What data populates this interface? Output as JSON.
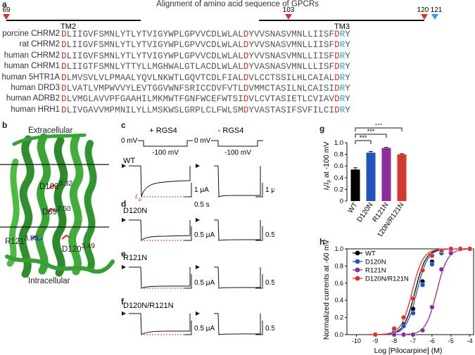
{
  "figure_title": "Alignment of amino acid sequence of GPCRs",
  "panels": {
    "a": "a",
    "b": "b",
    "c": "c",
    "d": "d",
    "e": "e",
    "f": "f",
    "g": "g",
    "h": "h"
  },
  "alignment": {
    "markers": [
      "69",
      "103",
      "120",
      "121"
    ],
    "tm_labels": [
      "TM2",
      "TM3"
    ],
    "rows": [
      {
        "name": "porcine CHRM2",
        "seq": "DLIIGVFSMNLYTLYTVIGYWPLGPVVCDLWLALDYVVSNASVMNLLIISFDRY"
      },
      {
        "name": "rat CHRM2",
        "seq": "DLIIGVFSMNLYTLYTVIGYWPLGPVVCDLWLALDYVVSNASVMNLLIISFDRY"
      },
      {
        "name": "human CHRM2",
        "seq": "DLIIGVFSMNLYTLYTVIGYWPLGPVVCDLWLALDYVVSNASVMNLLIISFDRY"
      },
      {
        "name": "human CHRM1",
        "seq": "DLIIGTFSMNLYTTYLLMGHWALGTLACDLWLALDYVASNASVMNLLLISFDRY"
      },
      {
        "name": "human 5HTR1A",
        "seq": "DLMVSVLVLPMAALYQVLNKWTLGQVTCDLFIALDVLCCTSSILHLCAIALDRY"
      },
      {
        "name": "human DRD3",
        "seq": "DLVATLVMPWVVYLEVTGGVWNFSRICCDVFVTLDVMMCTASILNLCAISIDRY"
      },
      {
        "name": "human ADRB2",
        "seq": "DLVMGLAVVPFGAAHILMKMWTFGNFWCEFWTSIDVLCVTASIETLCVIAVDRY"
      },
      {
        "name": "human HRH1",
        "seq": "DLIVGAVVMPMNILYLLMSKWSLGRPLCLFWLSMDYVASTASIFSVFILCIDRY"
      }
    ]
  },
  "structure": {
    "extracellular": "Extracellular",
    "intracellular": "Intracellular",
    "residues": [
      {
        "label": "D103",
        "sup": "3.32"
      },
      {
        "label": "D69",
        "sup": "2.50"
      },
      {
        "label": "R121",
        "sup": "3.50"
      },
      {
        "label": "D120",
        "sup": "3.49"
      }
    ]
  },
  "traces": {
    "conditions": [
      "+ RGS4",
      "- RGS4"
    ],
    "voltage_labels": [
      "0 mV",
      "-100 mV",
      "0 mV",
      "-100 mV"
    ],
    "constructs": [
      "WT",
      "D120N",
      "R121N",
      "D120N/R121N"
    ],
    "ip_label": "I",
    "ip_sub": "p",
    "scale_time": "0.5 s",
    "scale_wt": "1 μA",
    "scale_mut": "0.5 μA"
  },
  "bar_chart": {
    "type": "bar",
    "ylabel_main": "I",
    "ylabel_sub1": "t",
    "ylabel_slash": "/",
    "ylabel_sub2": "p",
    "ylabel_rest": " at -100 mV",
    "categories": [
      "WT",
      "D120N",
      "R121N",
      "D120N/R121N"
    ],
    "values": [
      0.54,
      0.83,
      0.91,
      0.8
    ],
    "errors": [
      0.03,
      0.02,
      0.01,
      0.01
    ],
    "colors": [
      "#000000",
      "#2255bb",
      "#8a2f9a",
      "#d23a30"
    ],
    "ylim": [
      0,
      1.0
    ],
    "yticks": [
      "0",
      "0.2",
      "0.4",
      "0.6",
      "0.8",
      "1.0"
    ],
    "significance": [
      "***",
      "***",
      "***"
    ]
  },
  "dose_response": {
    "type": "line",
    "xlabel": "Log [Pilocarpine] (M)",
    "ylabel": "Normalized currents at -60 mV",
    "xticks": [
      "-10",
      "-9",
      "-8",
      "-7",
      "-6",
      "-5",
      "-4"
    ],
    "yticks": [
      "0.0",
      "0.2",
      "0.4",
      "0.6",
      "0.8",
      "1.0"
    ],
    "xlim": [
      -10.5,
      -3.8
    ],
    "ylim": [
      0,
      1.0
    ],
    "x": [
      -9,
      -8,
      -7.5,
      -7,
      -6.5,
      -6,
      -5.5,
      -5,
      -4.5,
      -4
    ],
    "series": [
      {
        "name": "WT",
        "color": "#000000",
        "ec50": -6.9,
        "values": [
          0.0,
          0.04,
          0.12,
          0.3,
          0.62,
          0.85,
          0.95,
          0.99,
          1.0,
          1.0
        ]
      },
      {
        "name": "D120N",
        "color": "#2255bb",
        "ec50": -6.8,
        "values": [
          0.0,
          0.03,
          0.1,
          0.25,
          0.58,
          0.82,
          0.95,
          0.98,
          1.0,
          1.0
        ]
      },
      {
        "name": "R121N",
        "color": "#8a2f9a",
        "ec50": -5.75,
        "values": [
          0.0,
          0.0,
          0.0,
          0.0,
          0.05,
          0.32,
          0.76,
          0.95,
          1.0,
          1.0
        ]
      },
      {
        "name": "D120N/R121N",
        "color": "#e0302a",
        "ec50": -7.05,
        "values": [
          0.0,
          0.07,
          0.2,
          0.42,
          0.75,
          0.92,
          0.98,
          1.0,
          1.0,
          1.0
        ]
      }
    ]
  }
}
